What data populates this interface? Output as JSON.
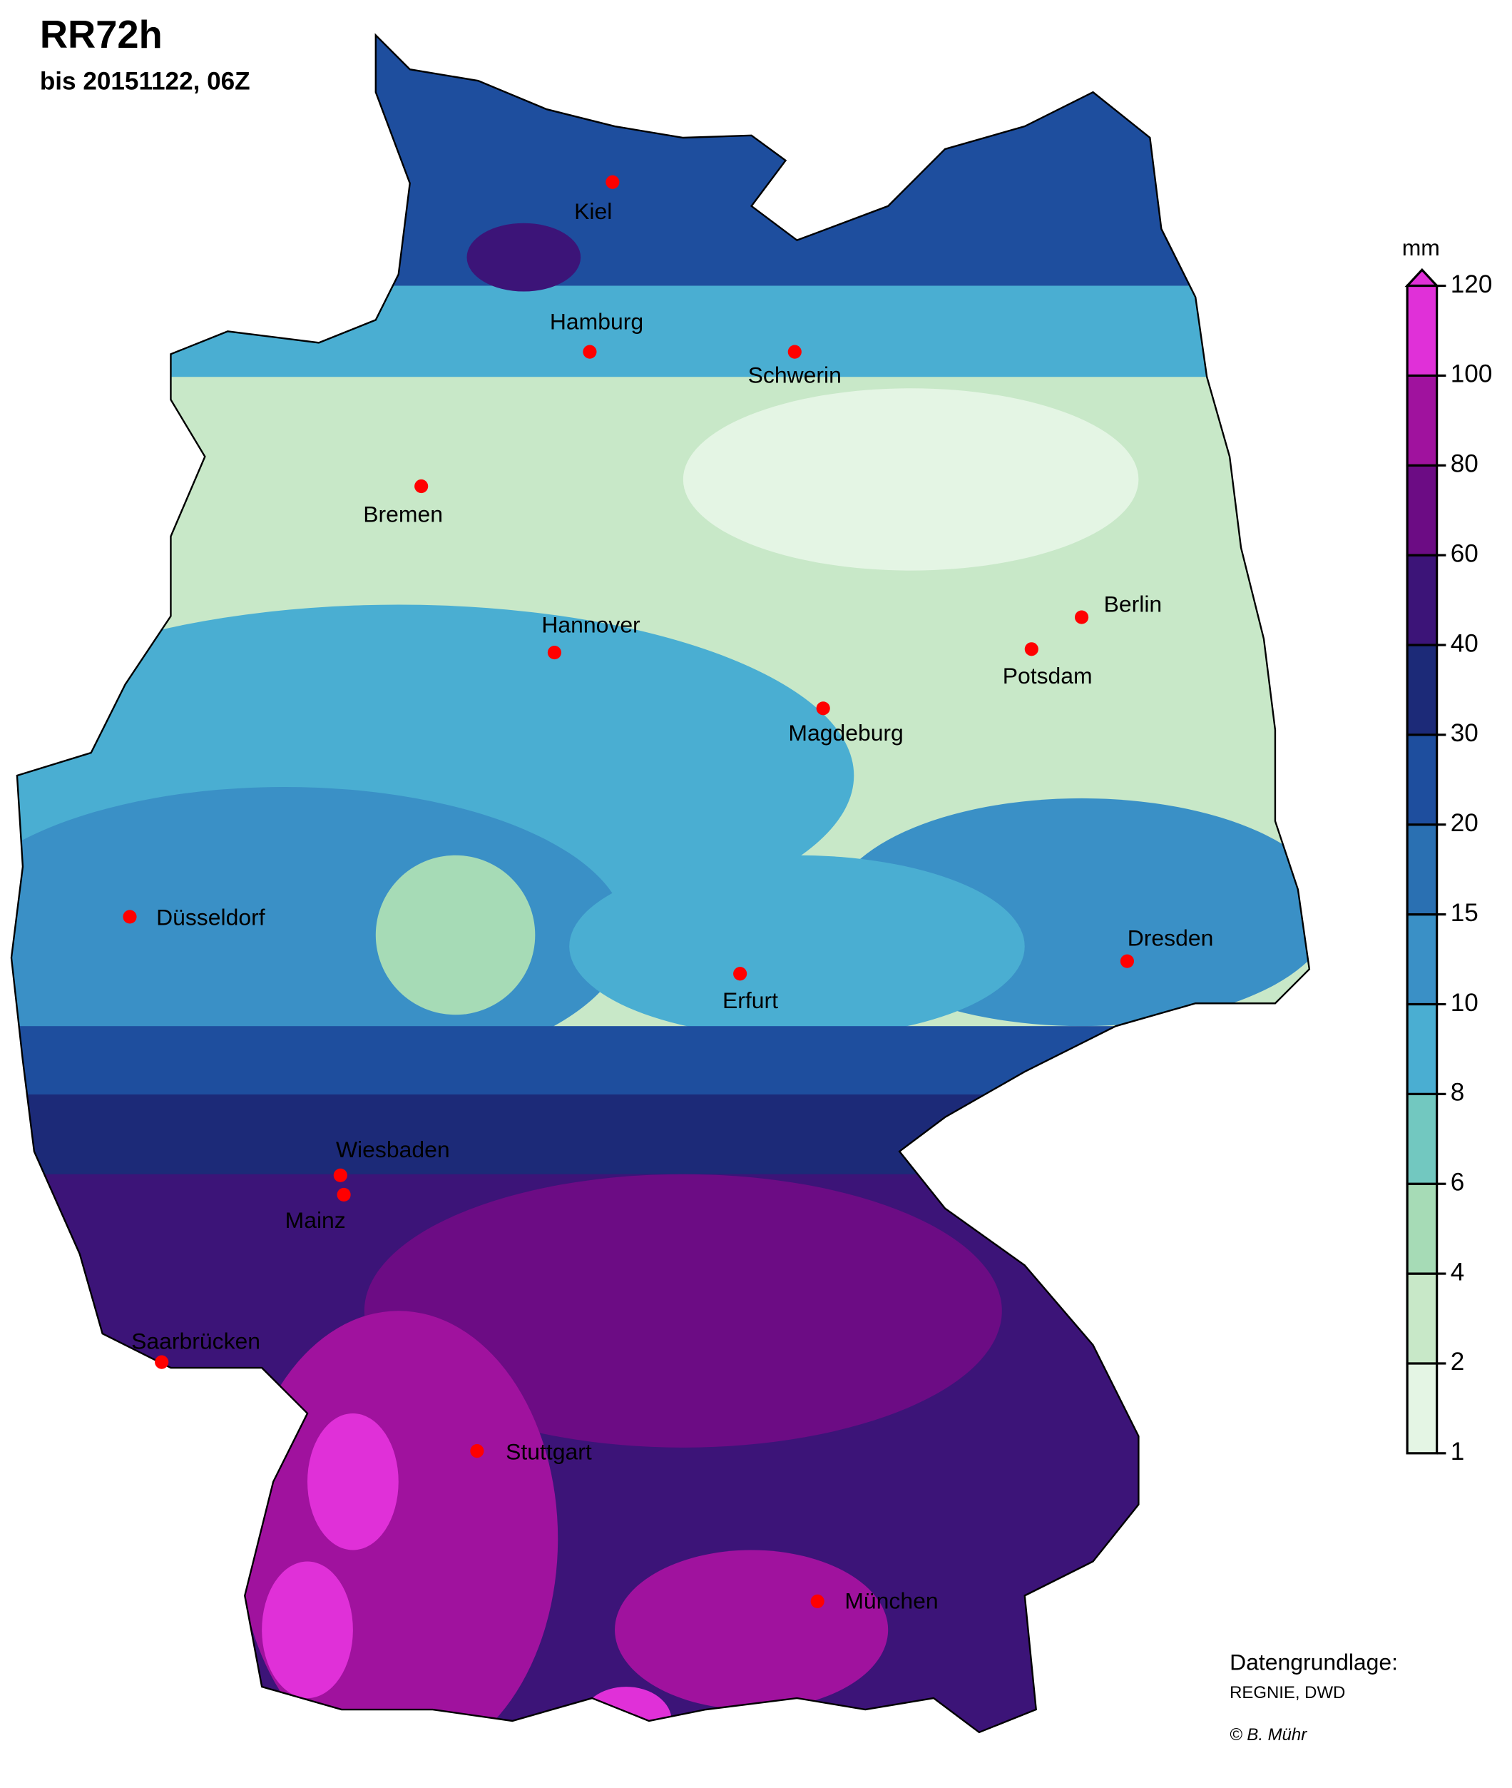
{
  "title": "RR72h",
  "subtitle": "bis 20151122, 06Z",
  "legend": {
    "unit": "mm",
    "ticks": [
      1,
      2,
      4,
      6,
      8,
      10,
      15,
      20,
      30,
      40,
      60,
      80,
      100,
      120
    ],
    "colors": [
      "#e4f5e4",
      "#c8e8c8",
      "#a6dbb6",
      "#72c8c0",
      "#4aaed2",
      "#3a90c6",
      "#2a70b2",
      "#1e4e9e",
      "#1c2a78",
      "#3c1478",
      "#6c0c84",
      "#a0129e",
      "#e030d8"
    ]
  },
  "cities": [
    {
      "label": "Kiel"
    },
    {
      "label": "Hamburg"
    },
    {
      "label": "Schwerin"
    },
    {
      "label": "Bremen"
    },
    {
      "label": "Hannover"
    },
    {
      "label": "Berlin"
    },
    {
      "label": "Potsdam"
    },
    {
      "label": "Magdeburg"
    },
    {
      "label": "Düsseldorf"
    },
    {
      "label": "Dresden"
    },
    {
      "label": "Erfurt"
    },
    {
      "label": "Wiesbaden"
    },
    {
      "label": "Mainz"
    },
    {
      "label": "Saarbrücken"
    },
    {
      "label": "Stuttgart"
    },
    {
      "label": "München"
    }
  ],
  "credits": {
    "source_title": "Datengrundlage:",
    "source": "REGNIE, DWD",
    "author": "© B. Mühr"
  }
}
